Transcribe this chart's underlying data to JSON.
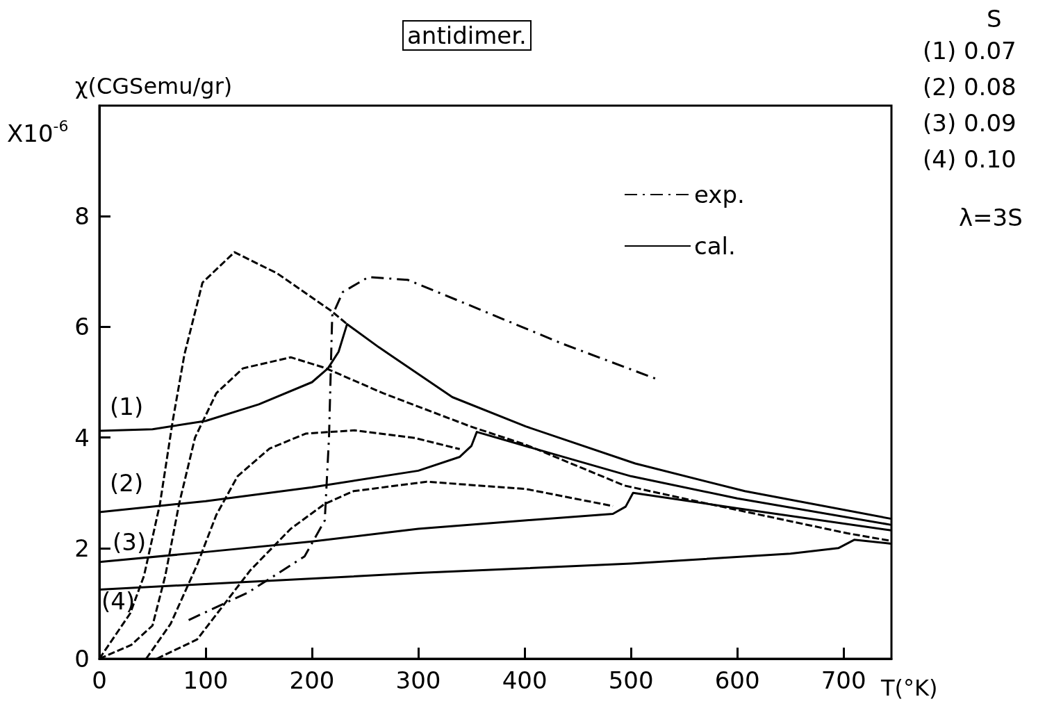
{
  "chart_data": {
    "type": "line",
    "title": "antidimer.",
    "ylabel": "χ(CGSemu/gr)",
    "xlabel": "T(°K)",
    "xlim": [
      0,
      745
    ],
    "ylim": [
      0,
      10
    ],
    "xticks": [
      0,
      100,
      200,
      300,
      400,
      500,
      600,
      700
    ],
    "yticks": [
      0,
      2,
      4,
      6,
      8
    ],
    "grid": false,
    "legend": "top right",
    "marker": "none",
    "series": [
      {
        "name": "exp.",
        "color": "#000000",
        "line_style": "dashdot",
        "x": [
          84,
          140,
          193,
          212,
          216,
          219,
          229,
          253,
          290,
          342,
          435,
          525
        ],
        "values": [
          0.7,
          1.2,
          1.85,
          2.5,
          4.0,
          6.2,
          6.63,
          6.9,
          6.85,
          6.44,
          5.7,
          5.05
        ]
      },
      {
        "name": "cal.",
        "color": "#000000",
        "line_style": "solid",
        "x": [
          0,
          50,
          100,
          150,
          200,
          215,
          225,
          233,
          263,
          332,
          401,
          504,
          607,
          745
        ],
        "values": [
          4.12,
          4.15,
          4.3,
          4.6,
          5.0,
          5.25,
          5.55,
          6.05,
          5.63,
          4.73,
          4.2,
          3.53,
          3.03,
          2.53
        ]
      },
      {
        "color": "#000000",
        "line_style": "solid",
        "x": [
          0,
          100,
          200,
          300,
          339,
          350,
          355,
          400,
          500,
          600,
          745
        ],
        "values": [
          2.65,
          2.85,
          3.1,
          3.4,
          3.65,
          3.85,
          4.1,
          3.85,
          3.3,
          2.9,
          2.42
        ]
      },
      {
        "color": "#000000",
        "line_style": "solid",
        "x": [
          0,
          100,
          200,
          300,
          400,
          483,
          495,
          502,
          600,
          745
        ],
        "values": [
          1.75,
          1.93,
          2.12,
          2.35,
          2.5,
          2.62,
          2.75,
          3.0,
          2.72,
          2.32
        ]
      },
      {
        "color": "#000000",
        "line_style": "solid",
        "x": [
          0,
          100,
          300,
          500,
          650,
          695,
          710,
          745
        ],
        "values": [
          1.25,
          1.35,
          1.55,
          1.72,
          1.9,
          2.0,
          2.15,
          2.08
        ]
      },
      {
        "color": "#000000",
        "line_style": "dashed",
        "x": [
          0,
          29,
          42,
          57,
          69,
          80,
          97,
          127,
          167,
          218,
          233
        ],
        "values": [
          0,
          0.82,
          1.5,
          2.8,
          4.3,
          5.5,
          6.8,
          7.35,
          6.97,
          6.29,
          6.05
        ]
      },
      {
        "color": "#000000",
        "line_style": "dashed",
        "x": [
          0,
          30,
          50,
          62,
          75,
          90,
          110,
          135,
          180,
          212,
          267,
          349,
          401,
          494,
          573,
          703,
          745
        ],
        "values": [
          0,
          0.25,
          0.6,
          1.5,
          2.8,
          4.0,
          4.8,
          5.25,
          5.45,
          5.26,
          4.8,
          4.2,
          3.87,
          3.13,
          2.8,
          2.27,
          2.13
        ]
      },
      {
        "color": "#000000",
        "line_style": "dashed",
        "x": [
          44,
          67,
          92,
          110,
          130,
          160,
          194,
          240,
          297,
          339
        ],
        "values": [
          0,
          0.63,
          1.7,
          2.6,
          3.3,
          3.8,
          4.07,
          4.13,
          3.99,
          3.79
        ]
      },
      {
        "color": "#000000",
        "line_style": "dashed",
        "x": [
          54,
          92,
          142,
          180,
          212,
          239,
          308,
          401,
          483
        ],
        "values": [
          0,
          0.35,
          1.6,
          2.35,
          2.8,
          3.03,
          3.2,
          3.07,
          2.76
        ]
      }
    ],
    "annotations": [
      "X10$^{-6}$",
      "S",
      "(1) 0.07",
      "(2) 0.08",
      "(3) 0.09",
      "(4) 0.10",
      "λ=3S",
      "(1)",
      "(2)",
      "(3)",
      "(4)"
    ]
  }
}
